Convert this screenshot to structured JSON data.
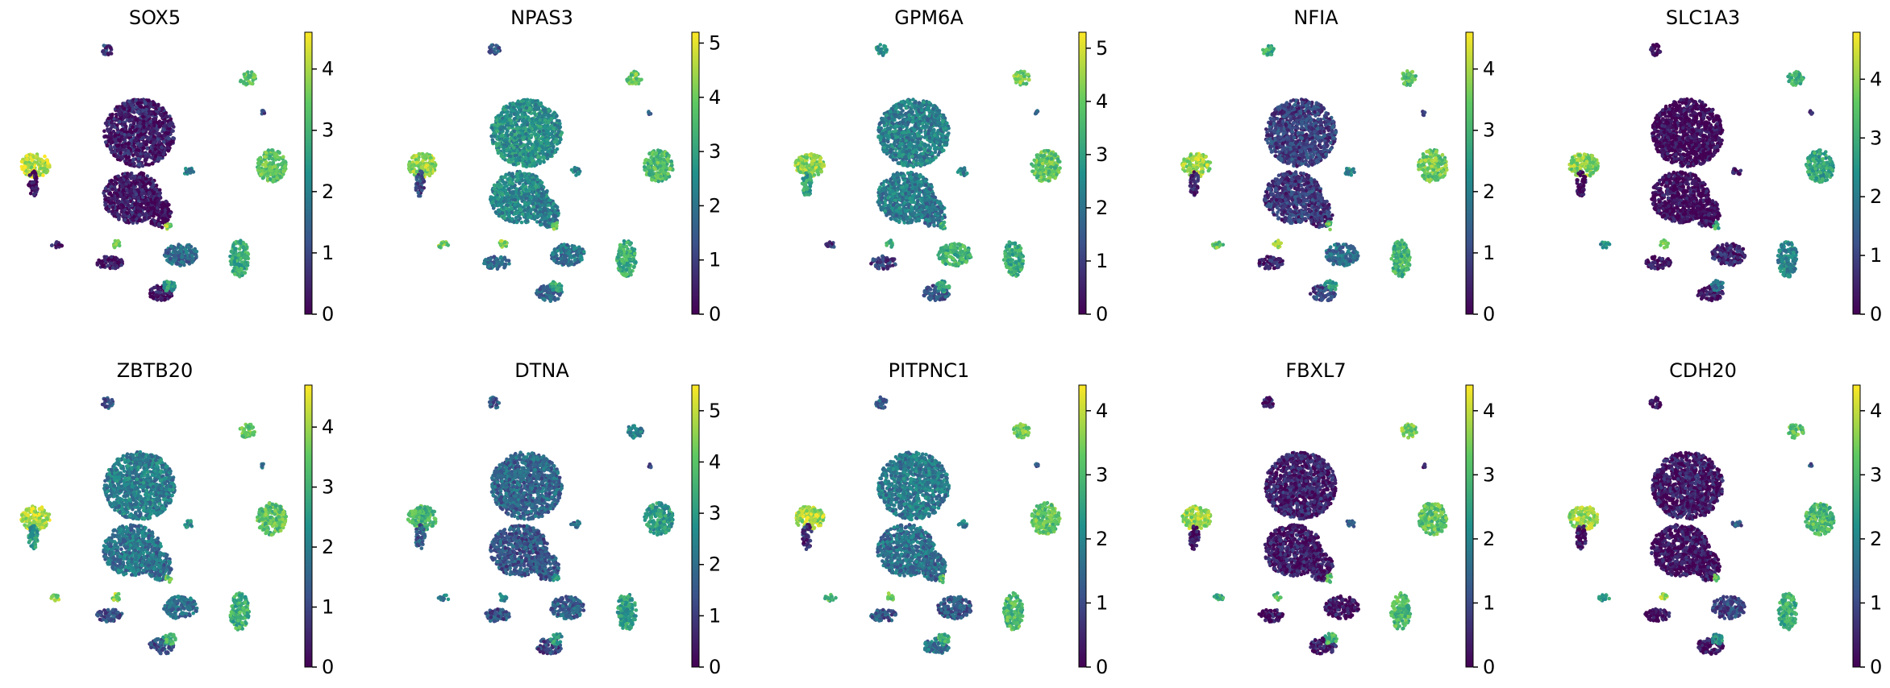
{
  "figure": {
    "description_title": "",
    "colormap": "viridis",
    "colormap_stops": [
      "#440154",
      "#3b528b",
      "#21918c",
      "#5ec962",
      "#fde725"
    ],
    "tick_color": "#000000",
    "background": "#ffffff"
  },
  "chart_data": [
    {
      "type": "scatter",
      "title": "SOX5",
      "colorbar_max": 4.6,
      "colorbar_ticks": [
        0,
        1,
        2,
        3,
        4
      ],
      "colorbar_tick_labels": [
        "0",
        "1",
        "2",
        "3",
        "4"
      ],
      "cluster_expression": [
        0.4,
        0.3,
        0.1,
        4.1,
        0.1,
        3.4,
        1.1,
        0.8,
        1.6,
        0.3,
        3.3,
        2.8,
        0.2,
        0.3,
        3.8,
        2.0,
        3.7,
        2.6
      ]
    },
    {
      "type": "scatter",
      "title": "NPAS3",
      "colorbar_max": 5.2,
      "colorbar_ticks": [
        0,
        1,
        2,
        3,
        4,
        5
      ],
      "colorbar_tick_labels": [
        "0",
        "1",
        "2",
        "3",
        "4",
        "5"
      ],
      "cluster_expression": [
        2.6,
        2.4,
        2.2,
        4.3,
        1.1,
        3.9,
        1.6,
        1.4,
        2.0,
        1.6,
        3.6,
        3.2,
        1.8,
        4.0,
        4.2,
        2.4,
        3.8,
        3.2
      ]
    },
    {
      "type": "scatter",
      "title": "GPM6A",
      "colorbar_max": 5.3,
      "colorbar_ticks": [
        0,
        1,
        2,
        3,
        4,
        5
      ],
      "colorbar_tick_labels": [
        "0",
        "1",
        "2",
        "3",
        "4",
        "5"
      ],
      "cluster_expression": [
        2.3,
        2.2,
        2.0,
        4.4,
        3.0,
        4.1,
        1.3,
        2.8,
        3.4,
        1.4,
        3.9,
        3.3,
        1.0,
        0.8,
        3.2,
        2.3,
        3.4,
        3.0
      ]
    },
    {
      "type": "scatter",
      "title": "NFIA",
      "colorbar_max": 4.6,
      "colorbar_ticks": [
        0,
        1,
        2,
        3,
        4
      ],
      "colorbar_tick_labels": [
        "0",
        "1",
        "2",
        "3",
        "4"
      ],
      "cluster_expression": [
        0.9,
        0.8,
        0.7,
        3.9,
        0.4,
        3.2,
        1.2,
        2.9,
        1.6,
        1.0,
        3.5,
        3.0,
        0.4,
        3.4,
        3.7,
        2.3,
        3.3,
        2.6
      ]
    },
    {
      "type": "scatter",
      "title": "SLC1A3",
      "colorbar_max": 4.8,
      "colorbar_ticks": [
        0,
        1,
        2,
        3,
        4
      ],
      "colorbar_tick_labels": [
        "0",
        "1",
        "2",
        "3",
        "4"
      ],
      "cluster_expression": [
        0.1,
        0.1,
        0.1,
        3.9,
        0.1,
        3.0,
        0.4,
        0.1,
        0.5,
        0.2,
        2.8,
        2.2,
        0.2,
        2.4,
        4.0,
        0.3,
        3.1,
        1.9
      ]
    },
    {
      "type": "scatter",
      "title": "ZBTB20",
      "colorbar_max": 4.7,
      "colorbar_ticks": [
        0,
        1,
        2,
        3,
        4
      ],
      "colorbar_tick_labels": [
        "0",
        "1",
        "2",
        "3",
        "4"
      ],
      "cluster_expression": [
        2.0,
        1.8,
        1.6,
        4.2,
        2.6,
        3.6,
        1.4,
        1.3,
        1.7,
        1.2,
        3.4,
        3.0,
        1.2,
        3.7,
        3.9,
        2.2,
        3.6,
        3.1
      ]
    },
    {
      "type": "scatter",
      "title": "DTNA",
      "colorbar_max": 5.5,
      "colorbar_ticks": [
        0,
        1,
        2,
        3,
        4,
        5
      ],
      "colorbar_tick_labels": [
        "0",
        "1",
        "2",
        "3",
        "4",
        "5"
      ],
      "cluster_expression": [
        1.8,
        1.5,
        1.6,
        3.7,
        1.6,
        2.4,
        1.4,
        1.6,
        1.7,
        1.2,
        3.0,
        3.1,
        1.4,
        2.2,
        2.6,
        1.8,
        3.0,
        2.9
      ]
    },
    {
      "type": "scatter",
      "title": "PITPNC1",
      "colorbar_max": 4.4,
      "colorbar_ticks": [
        0,
        1,
        2,
        3,
        4
      ],
      "colorbar_tick_labels": [
        "0",
        "1",
        "2",
        "3",
        "4"
      ],
      "cluster_expression": [
        1.8,
        1.6,
        1.5,
        3.8,
        0.6,
        3.4,
        1.2,
        1.4,
        1.2,
        1.7,
        3.2,
        3.0,
        1.2,
        3.0,
        3.4,
        1.8,
        3.3,
        2.8
      ]
    },
    {
      "type": "scatter",
      "title": "FBXL7",
      "colorbar_max": 4.4,
      "colorbar_ticks": [
        0,
        1,
        2,
        3,
        4
      ],
      "colorbar_tick_labels": [
        "0",
        "1",
        "2",
        "3",
        "4"
      ],
      "cluster_expression": [
        0.4,
        0.3,
        0.3,
        3.8,
        0.2,
        3.5,
        0.3,
        0.3,
        0.3,
        0.4,
        3.2,
        3.0,
        0.2,
        2.6,
        3.0,
        1.6,
        3.2,
        2.9
      ]
    },
    {
      "type": "scatter",
      "title": "CDH20",
      "colorbar_max": 4.4,
      "colorbar_ticks": [
        0,
        1,
        2,
        3,
        4
      ],
      "colorbar_tick_labels": [
        "0",
        "1",
        "2",
        "3",
        "4"
      ],
      "cluster_expression": [
        0.3,
        0.2,
        0.2,
        3.8,
        0.2,
        3.2,
        1.2,
        0.2,
        1.0,
        0.2,
        3.0,
        2.8,
        0.2,
        2.2,
        3.6,
        1.2,
        3.4,
        2.2
      ]
    }
  ]
}
